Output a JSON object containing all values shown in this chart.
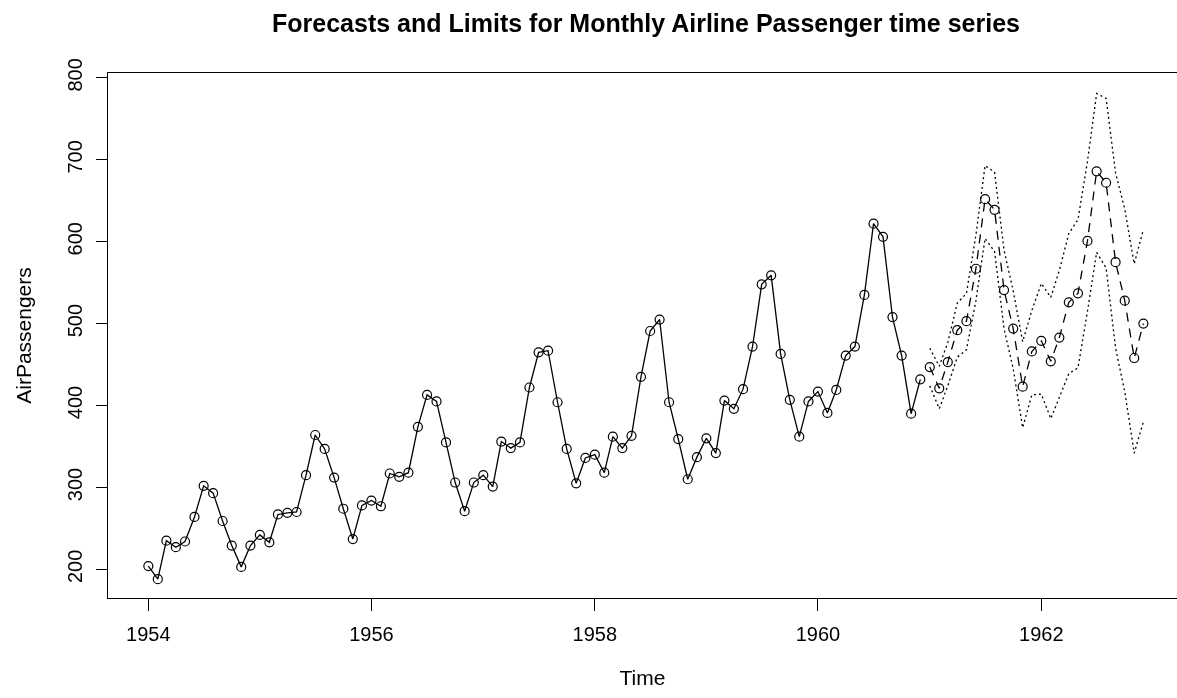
{
  "chart_data": {
    "type": "line",
    "title": "Forecasts and Limits for Monthly Airline Passenger time series",
    "xlabel": "Time",
    "ylabel": "AirPassengers",
    "xlim": [
      "1953-08-22",
      "1963-03-21"
    ],
    "xticks": [
      "1954",
      "1956",
      "1958",
      "1960",
      "1962"
    ],
    "ylim": [
      165,
      806
    ],
    "yticks": [
      200,
      300,
      400,
      500,
      600,
      700,
      800
    ],
    "grid": false,
    "series": [
      {
        "color": "#000000",
        "marker": "circle",
        "line_style": "solid",
        "x": [
          "1954-01",
          "1954-02",
          "1954-03",
          "1954-04",
          "1954-05",
          "1954-06",
          "1954-07",
          "1954-08",
          "1954-09",
          "1954-10",
          "1954-11",
          "1954-12",
          "1955-01",
          "1955-02",
          "1955-03",
          "1955-04",
          "1955-05",
          "1955-06",
          "1955-07",
          "1955-08",
          "1955-09",
          "1955-10",
          "1955-11",
          "1955-12",
          "1956-01",
          "1956-02",
          "1956-03",
          "1956-04",
          "1956-05",
          "1956-06",
          "1956-07",
          "1956-08",
          "1956-09",
          "1956-10",
          "1956-11",
          "1956-12",
          "1957-01",
          "1957-02",
          "1957-03",
          "1957-04",
          "1957-05",
          "1957-06",
          "1957-07",
          "1957-08",
          "1957-09",
          "1957-10",
          "1957-11",
          "1957-12",
          "1958-01",
          "1958-02",
          "1958-03",
          "1958-04",
          "1958-05",
          "1958-06",
          "1958-07",
          "1958-08",
          "1958-09",
          "1958-10",
          "1958-11",
          "1958-12",
          "1959-01",
          "1959-02",
          "1959-03",
          "1959-04",
          "1959-05",
          "1959-06",
          "1959-07",
          "1959-08",
          "1959-09",
          "1959-10",
          "1959-11",
          "1959-12",
          "1960-01",
          "1960-02",
          "1960-03",
          "1960-04",
          "1960-05",
          "1960-06",
          "1960-07",
          "1960-08",
          "1960-09",
          "1960-10",
          "1960-11",
          "1960-12"
        ],
        "values": [
          204,
          188,
          235,
          227,
          234,
          264,
          302,
          293,
          259,
          229,
          203,
          229,
          242,
          233,
          267,
          269,
          270,
          315,
          364,
          347,
          312,
          274,
          237,
          278,
          284,
          277,
          317,
          313,
          318,
          374,
          413,
          405,
          355,
          306,
          271,
          306,
          315,
          301,
          356,
          348,
          355,
          422,
          465,
          467,
          404,
          347,
          305,
          336,
          340,
          318,
          362,
          348,
          363,
          435,
          491,
          505,
          404,
          359,
          310,
          337,
          360,
          342,
          406,
          396,
          420,
          472,
          548,
          559,
          463,
          407,
          362,
          405,
          417,
          391,
          419,
          461,
          472,
          535,
          622,
          606,
          508,
          461,
          390,
          432
        ]
      },
      {
        "color": "#000000",
        "marker": "circle",
        "line_style": "dashed",
        "x": [
          "1961-01",
          "1961-02",
          "1961-03",
          "1961-04",
          "1961-05",
          "1961-06",
          "1961-07",
          "1961-08",
          "1961-09",
          "1961-10",
          "1961-11",
          "1961-12",
          "1962-01",
          "1962-02",
          "1962-03",
          "1962-04",
          "1962-05",
          "1962-06",
          "1962-07",
          "1962-08",
          "1962-09",
          "1962-10",
          "1962-11",
          "1962-12"
        ],
        "values": [
          447,
          421,
          453,
          492,
          503,
          567,
          652,
          639,
          541,
          494,
          423,
          466,
          479,
          454,
          483,
          526,
          537,
          601,
          686,
          672,
          575,
          528,
          458,
          500
        ]
      },
      {
        "color": "#000000",
        "marker": "none",
        "line_style": "dotted",
        "x": [
          "1961-01",
          "1961-02",
          "1961-03",
          "1961-04",
          "1961-05",
          "1961-06",
          "1961-07",
          "1961-08",
          "1961-09",
          "1961-10",
          "1961-11",
          "1961-12",
          "1962-01",
          "1962-02",
          "1962-03",
          "1962-04",
          "1962-05",
          "1962-06",
          "1962-07",
          "1962-08",
          "1962-09",
          "1962-10",
          "1962-11",
          "1962-12"
        ],
        "values": [
          470,
          448,
          477,
          525,
          537,
          608,
          693,
          685,
          590,
          540,
          478,
          516,
          549,
          532,
          565,
          610,
          627,
          698,
          781,
          775,
          684,
          640,
          573,
          615
        ]
      },
      {
        "color": "#000000",
        "marker": "none",
        "line_style": "dotted",
        "x": [
          "1961-01",
          "1961-02",
          "1961-03",
          "1961-04",
          "1961-05",
          "1961-06",
          "1961-07",
          "1961-08",
          "1961-09",
          "1961-10",
          "1961-11",
          "1961-12",
          "1962-01",
          "1962-02",
          "1962-03",
          "1962-04",
          "1962-05",
          "1962-06",
          "1962-07",
          "1962-08",
          "1962-09",
          "1962-10",
          "1962-11",
          "1962-12"
        ],
        "values": [
          424,
          396,
          424,
          459,
          468,
          528,
          604,
          588,
          494,
          445,
          373,
          413,
          414,
          384,
          410,
          439,
          446,
          515,
          587,
          568,
          470,
          417,
          342,
          380
        ]
      }
    ]
  }
}
